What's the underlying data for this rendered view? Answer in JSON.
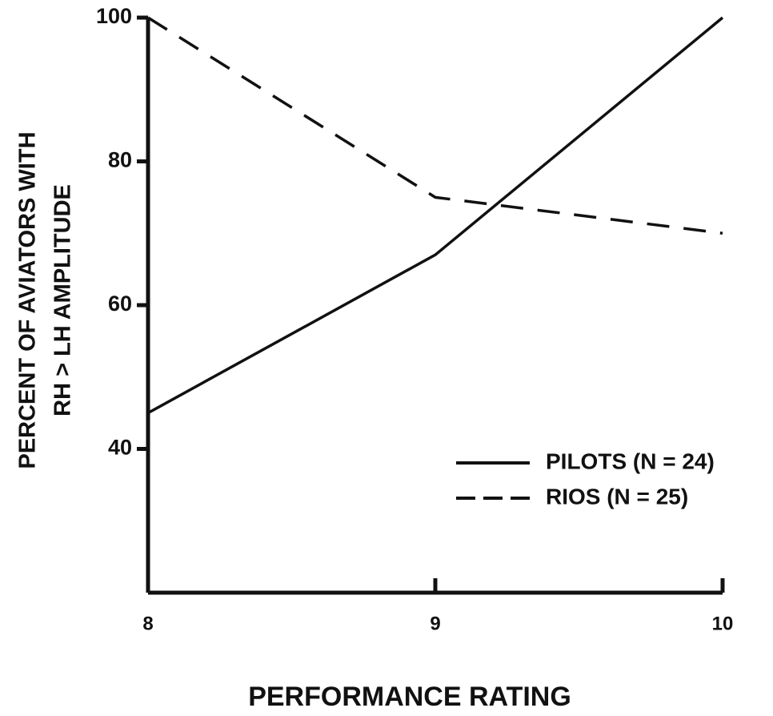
{
  "chart_data": {
    "type": "line",
    "xlabel": "PERFORMANCE RATING",
    "ylabel": [
      "PERCENT OF AVIATORS WITH",
      "RH > LH AMPLITUDE"
    ],
    "x": [
      8,
      9,
      10
    ],
    "series": [
      {
        "name": "PILOTS (N = 24)",
        "color": "#111111",
        "linestyle": "solid",
        "values": [
          45,
          67,
          100
        ]
      },
      {
        "name": "RIOS (N = 25)",
        "color": "#111111",
        "linestyle": "dashed",
        "values": [
          100,
          75,
          70
        ]
      }
    ],
    "xlim": [
      8,
      10
    ],
    "xticks": [
      8,
      9,
      10
    ],
    "ylim": [
      20,
      100
    ],
    "yticks": [
      40,
      60,
      80,
      100
    ],
    "legend": "right"
  }
}
